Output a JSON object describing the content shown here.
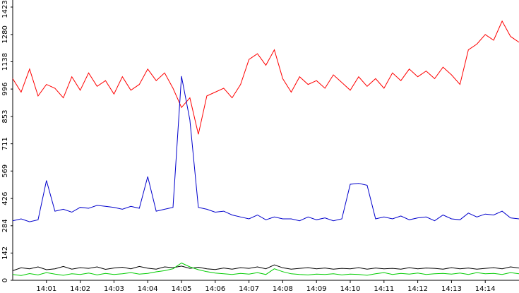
{
  "chart_data": {
    "type": "line",
    "xlim": [
      0,
      15
    ],
    "xticks": [
      {
        "value": 1,
        "label": "14:01"
      },
      {
        "value": 2,
        "label": "14:02"
      },
      {
        "value": 3,
        "label": "14:03"
      },
      {
        "value": 4,
        "label": "14:04"
      },
      {
        "value": 5,
        "label": "14:05"
      },
      {
        "value": 6,
        "label": "14:06"
      },
      {
        "value": 7,
        "label": "14:07"
      },
      {
        "value": 8,
        "label": "14:08"
      },
      {
        "value": 9,
        "label": "14:09"
      },
      {
        "value": 10,
        "label": "14:10"
      },
      {
        "value": 11,
        "label": "14:11"
      },
      {
        "value": 12,
        "label": "14:12"
      },
      {
        "value": 13,
        "label": "14:13"
      },
      {
        "value": 14,
        "label": "14:14"
      }
    ],
    "ylim": [
      0,
      1423
    ],
    "yticks": [
      0,
      142,
      284,
      426,
      569,
      711,
      853,
      996,
      1138,
      1280,
      1423
    ],
    "x": [
      0,
      0.25,
      0.5,
      0.75,
      1,
      1.25,
      1.5,
      1.75,
      2,
      2.25,
      2.5,
      2.75,
      3,
      3.25,
      3.5,
      3.75,
      4,
      4.25,
      4.5,
      4.75,
      5,
      5.25,
      5.5,
      5.75,
      6,
      6.25,
      6.5,
      6.75,
      7,
      7.25,
      7.5,
      7.75,
      8,
      8.25,
      8.5,
      8.75,
      9,
      9.25,
      9.5,
      9.75,
      10,
      10.25,
      10.5,
      10.75,
      11,
      11.25,
      11.5,
      11.75,
      12,
      12.25,
      12.5,
      12.75,
      13,
      13.25,
      13.5,
      13.75,
      14,
      14.25,
      14.5,
      14.75,
      15
    ],
    "series": [
      {
        "color": "#ff0000",
        "values": [
          1050,
          980,
          1100,
          960,
          1020,
          1000,
          950,
          1060,
          990,
          1080,
          1010,
          1040,
          970,
          1060,
          990,
          1020,
          1100,
          1040,
          1080,
          1000,
          900,
          950,
          760,
          960,
          980,
          1000,
          950,
          1020,
          1150,
          1180,
          1120,
          1200,
          1050,
          980,
          1060,
          1020,
          1040,
          1000,
          1070,
          1030,
          990,
          1060,
          1010,
          1050,
          1000,
          1080,
          1040,
          1100,
          1060,
          1090,
          1050,
          1110,
          1070,
          1020,
          1200,
          1230,
          1280,
          1250,
          1350,
          1270,
          1240
        ]
      },
      {
        "color": "#0000cc",
        "values": [
          310,
          320,
          305,
          315,
          520,
          360,
          370,
          355,
          380,
          375,
          390,
          385,
          380,
          370,
          385,
          375,
          540,
          360,
          370,
          380,
          1063,
          835,
          380,
          370,
          355,
          360,
          340,
          330,
          320,
          340,
          315,
          330,
          320,
          320,
          310,
          330,
          315,
          325,
          310,
          320,
          500,
          505,
          495,
          320,
          330,
          320,
          335,
          315,
          325,
          330,
          310,
          340,
          320,
          315,
          350,
          330,
          345,
          340,
          360,
          325,
          320
        ]
      },
      {
        "color": "#000000",
        "values": [
          50,
          65,
          60,
          70,
          55,
          60,
          72,
          58,
          66,
          62,
          70,
          57,
          64,
          68,
          60,
          72,
          63,
          58,
          70,
          66,
          74,
          62,
          68,
          60,
          56,
          64,
          58,
          66,
          62,
          70,
          60,
          80,
          65,
          58,
          62,
          66,
          60,
          64,
          58,
          62,
          60,
          66,
          58,
          64,
          60,
          62,
          58,
          66,
          60,
          64,
          62,
          58,
          66,
          60,
          64,
          58,
          62,
          66,
          60,
          70,
          64
        ]
      },
      {
        "color": "#00cc00",
        "values": [
          30,
          25,
          35,
          28,
          40,
          32,
          26,
          34,
          30,
          38,
          28,
          36,
          30,
          34,
          40,
          32,
          36,
          44,
          50,
          60,
          90,
          70,
          55,
          45,
          38,
          34,
          30,
          36,
          32,
          40,
          30,
          60,
          45,
          34,
          30,
          28,
          32,
          30,
          34,
          28,
          32,
          30,
          26,
          34,
          40,
          30,
          36,
          32,
          38,
          30,
          34,
          36,
          32,
          38,
          30,
          40,
          34,
          36,
          30,
          40,
          34
        ]
      }
    ]
  }
}
